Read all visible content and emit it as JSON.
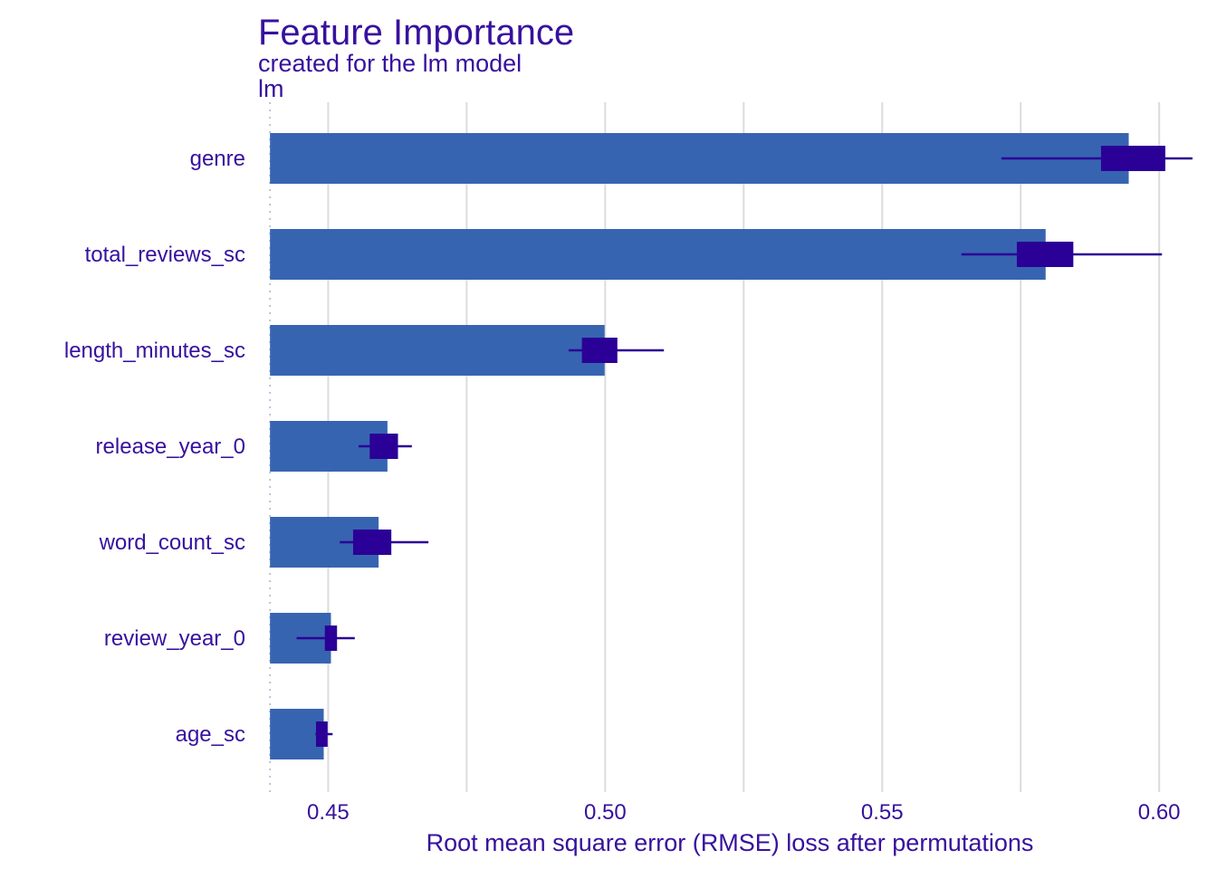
{
  "chart_data": {
    "type": "bar",
    "title": "Feature Importance",
    "subtitle": "created for the lm model",
    "panel_label": "lm",
    "xlabel": "Root mean square error (RMSE) loss after permutations",
    "ylabel": "",
    "xlim": [
      0.438,
      0.607
    ],
    "baseline": 0.4395,
    "x_ticks": [
      0.45,
      0.5,
      0.55,
      0.6
    ],
    "x_tick_labels": [
      "0.45",
      "0.50",
      "0.55",
      "0.60"
    ],
    "grid": true,
    "legend": "none",
    "categories": [
      "genre",
      "total_reviews_sc",
      "length_minutes_sc",
      "release_year_0",
      "word_count_sc",
      "review_year_0",
      "age_sc"
    ],
    "values": [
      0.5945,
      0.5795,
      0.4999,
      0.4607,
      0.4591,
      0.4505,
      0.4492
    ],
    "boxplots": [
      {
        "min": 0.5715,
        "q1": 0.5895,
        "q3": 0.6011,
        "max": 0.606
      },
      {
        "min": 0.5643,
        "q1": 0.5743,
        "q3": 0.5845,
        "max": 0.6005
      },
      {
        "min": 0.4934,
        "q1": 0.4958,
        "q3": 0.5022,
        "max": 0.5106
      },
      {
        "min": 0.4555,
        "q1": 0.4575,
        "q3": 0.4626,
        "max": 0.4651
      },
      {
        "min": 0.4521,
        "q1": 0.4545,
        "q3": 0.4614,
        "max": 0.4681
      },
      {
        "min": 0.4443,
        "q1": 0.4494,
        "q3": 0.4516,
        "max": 0.4548
      },
      {
        "min": 0.4477,
        "q1": 0.4478,
        "q3": 0.4499,
        "max": 0.4508
      }
    ]
  },
  "colors": {
    "bar": "#3764b1",
    "box": "#2a0096",
    "text": "#37119e",
    "grid": "#dcdcdc",
    "baseline": "#b9c4d6"
  }
}
